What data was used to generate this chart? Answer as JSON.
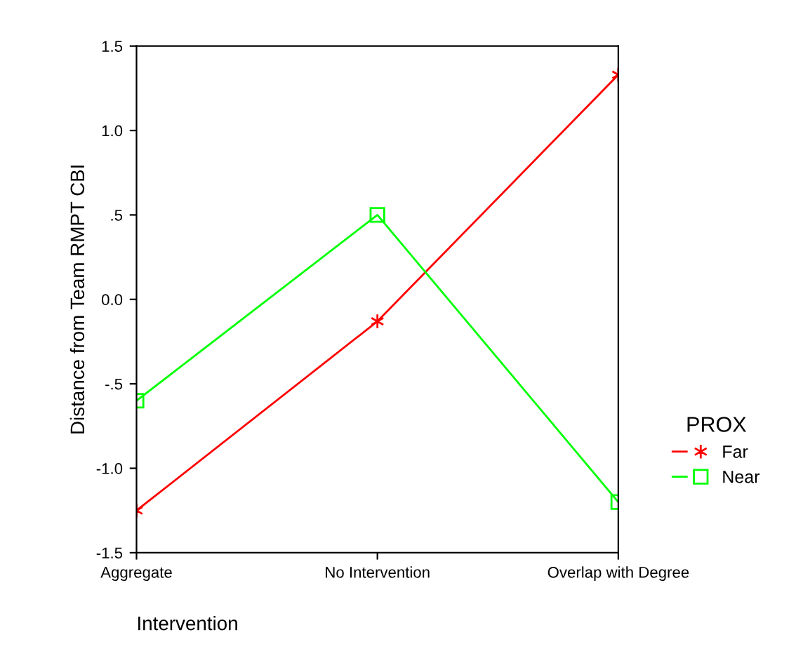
{
  "chart_data": {
    "type": "line",
    "xlabel": "Intervention",
    "ylabel": "Distance from Team RMPT CBI",
    "legend_title": "PROX",
    "categories": [
      "Aggregate",
      "No Intervention",
      "Overlap with Degree"
    ],
    "series": [
      {
        "name": "Far",
        "color": "#ff0000",
        "marker": "cross",
        "values": [
          -1.25,
          -0.13,
          1.33
        ]
      },
      {
        "name": "Near",
        "color": "#00ff00",
        "marker": "square",
        "values": [
          -0.6,
          0.5,
          -1.2
        ]
      }
    ],
    "ylim": [
      -1.5,
      1.5
    ],
    "yticks": [
      {
        "value": -1.5,
        "label": "-1.5"
      },
      {
        "value": -1.0,
        "label": "-1.0"
      },
      {
        "value": -0.5,
        "label": "-.5"
      },
      {
        "value": 0.0,
        "label": "0.0"
      },
      {
        "value": 0.5,
        "label": ".5"
      },
      {
        "value": 1.0,
        "label": "1.0"
      },
      {
        "value": 1.5,
        "label": "1.5"
      }
    ],
    "grid": false,
    "legend": "right",
    "line_style": "solid"
  }
}
